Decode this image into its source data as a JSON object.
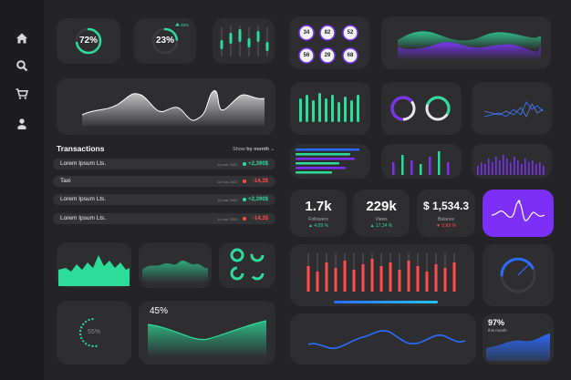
{
  "colors": {
    "accent_green": "#2ddc9a",
    "accent_purple": "#7b2ff7",
    "accent_red": "#ff4d4f",
    "accent_blue": "#2b6cff",
    "card": "#2e2e31"
  },
  "sidebar": {
    "items": [
      {
        "icon": "home-icon"
      },
      {
        "icon": "search-icon"
      },
      {
        "icon": "cart-icon"
      },
      {
        "icon": "user-icon"
      }
    ]
  },
  "gauges": {
    "g72": {
      "value": "72%",
      "fraction": 0.72
    },
    "g23": {
      "value": "23%",
      "fraction": 0.23,
      "delta": "25%"
    }
  },
  "circles": [
    "34",
    "82",
    "52",
    "56",
    "29",
    "68"
  ],
  "transactions": {
    "title": "Transactions",
    "filter_label": "Show",
    "filter_value": "by month",
    "rows": [
      {
        "name": "Lorem Ipsum Lts.",
        "date": "14 mar 2020",
        "amount": "+2,390$",
        "positive": true
      },
      {
        "name": "Taxi",
        "date": "14 mar 2020",
        "amount": "-14,3$",
        "positive": false
      },
      {
        "name": "Lorem Ipsum Lts.",
        "date": "14 mar 2020",
        "amount": "+2,390$",
        "positive": true
      },
      {
        "name": "Lorem Ipsum Lts.",
        "date": "14 mar 2020",
        "amount": "-14,3$",
        "positive": false
      }
    ]
  },
  "stats": {
    "followers": {
      "value": "1.7k",
      "label": "Followers",
      "delta": "4,09 %"
    },
    "views": {
      "value": "229k",
      "label": "Views",
      "delta": "17,34 %"
    },
    "balance": {
      "value": "$ 1,534.3",
      "label": "Balance",
      "delta": "0,89 %"
    }
  },
  "area_percent": {
    "value": "45%"
  },
  "progress_55": {
    "value": "55%"
  },
  "month_card": {
    "value": "97%",
    "label": "this month",
    "fraction": 0.97
  }
}
